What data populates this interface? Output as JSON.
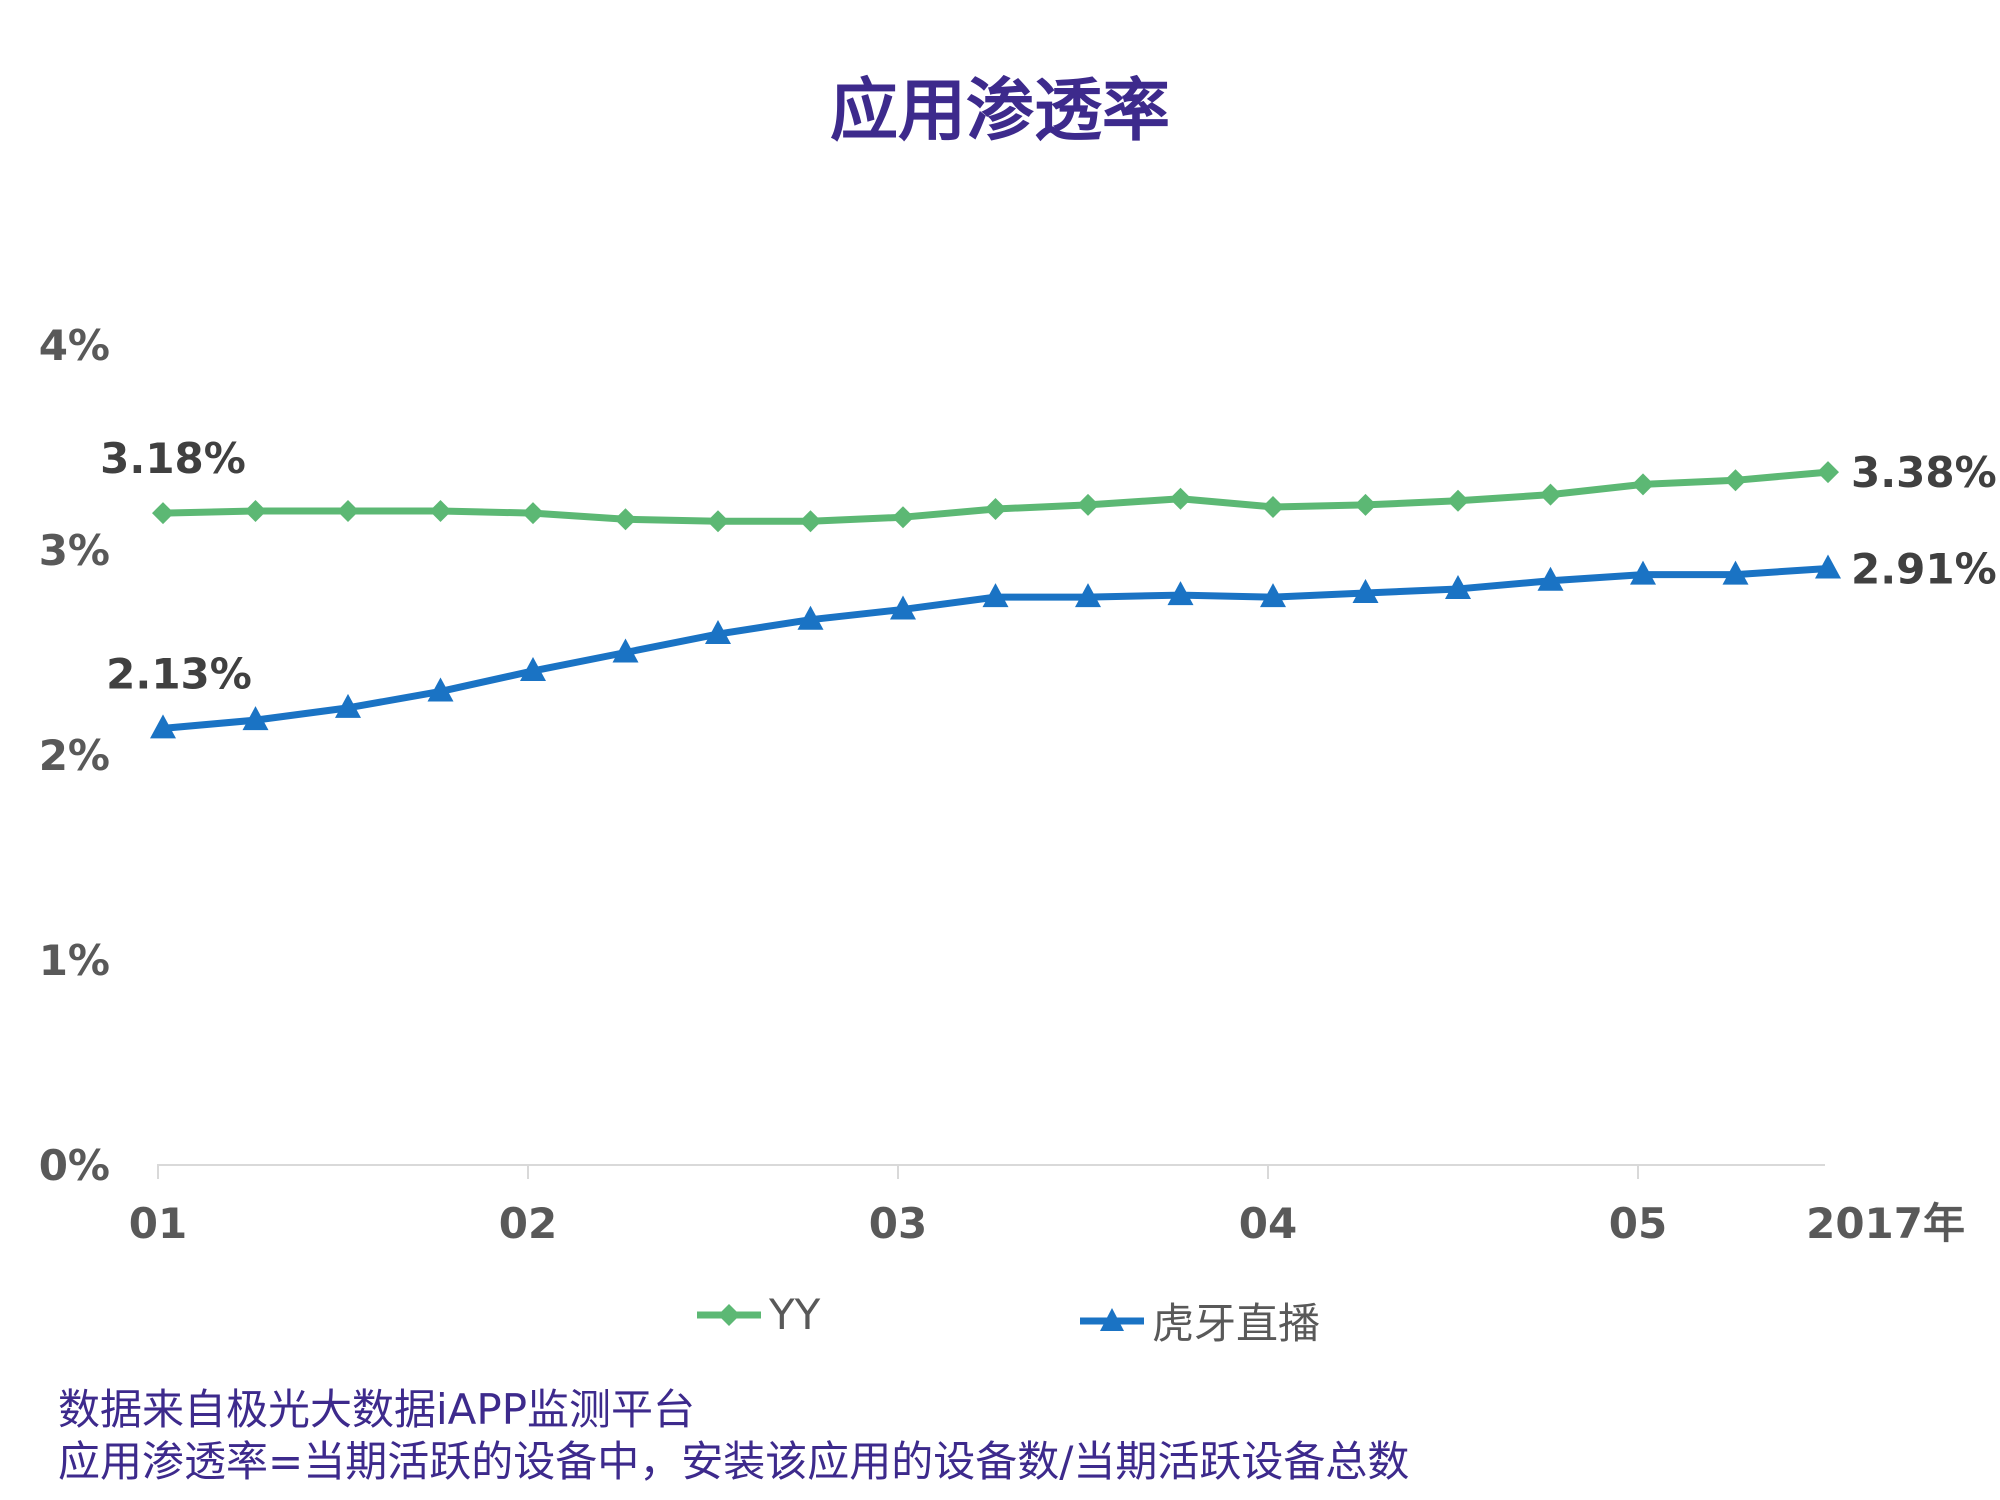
{
  "chart_data": {
    "type": "line",
    "title": "应用渗透率",
    "x": [
      "01",
      "",
      "",
      "",
      "02",
      "",
      "",
      "",
      "03",
      "",
      "",
      "",
      "04",
      "",
      "",
      "",
      "05",
      "",
      ""
    ],
    "x_tick_labels": [
      "01",
      "02",
      "03",
      "04",
      "05"
    ],
    "x_unit_label": "2017年",
    "y_tick_labels": [
      "0%",
      "1%",
      "2%",
      "3%",
      "4%"
    ],
    "ylim": [
      0,
      4
    ],
    "grid": false,
    "legend_position": "bottom",
    "series": [
      {
        "name": "YY",
        "color": "#5cb874",
        "marker": "diamond",
        "values": [
          3.18,
          3.19,
          3.19,
          3.19,
          3.18,
          3.15,
          3.14,
          3.14,
          3.16,
          3.2,
          3.22,
          3.25,
          3.21,
          3.22,
          3.24,
          3.27,
          3.32,
          3.34,
          3.38
        ],
        "first_label": "3.18%",
        "last_label": "3.38%"
      },
      {
        "name": "虎牙直播",
        "color": "#1a73c4",
        "marker": "triangle",
        "values": [
          2.13,
          2.17,
          2.23,
          2.31,
          2.41,
          2.5,
          2.59,
          2.66,
          2.71,
          2.77,
          2.77,
          2.78,
          2.77,
          2.79,
          2.81,
          2.85,
          2.88,
          2.88,
          2.91
        ],
        "first_label": "2.13%",
        "last_label": "2.91%"
      }
    ]
  },
  "notes": {
    "line1": "数据来自极光大数据iAPP监测平台",
    "line2": "应用渗透率=当期活跃的设备中，安装该应用的设备数/当期活跃设备总数"
  }
}
